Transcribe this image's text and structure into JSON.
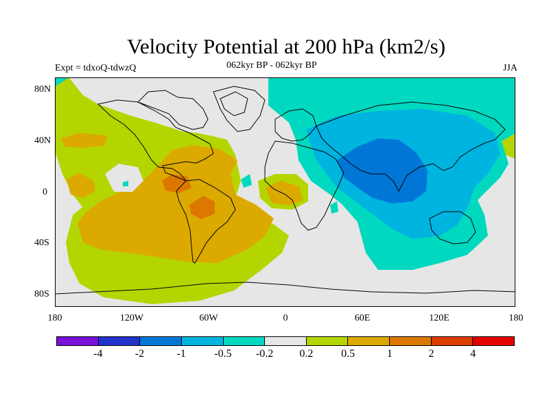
{
  "title": "Velocity Potential at 200 hPa (km2/s)",
  "left_label": "Expt = tdxoQ-tdwzQ",
  "center_label": "062kyr BP - 062kyr BP",
  "right_label": "JJA",
  "map": {
    "y_ticks": [
      "80N",
      "40N",
      "0",
      "40S",
      "80S"
    ],
    "x_ticks": [
      "180",
      "120W",
      "60W",
      "0",
      "60E",
      "120E",
      "180"
    ],
    "contour_levels": [
      "-4",
      "-2",
      "-1",
      "-0.5",
      "-0.2",
      "0.2",
      "0.5",
      "1",
      "2",
      "4"
    ],
    "colors": [
      "#7a10d9",
      "#2233cc",
      "#0077d6",
      "#00b4e0",
      "#00d8bf",
      "#e6e6e6",
      "#b5d500",
      "#dba900",
      "#dc7800",
      "#dd3e00",
      "#e50000"
    ]
  }
}
